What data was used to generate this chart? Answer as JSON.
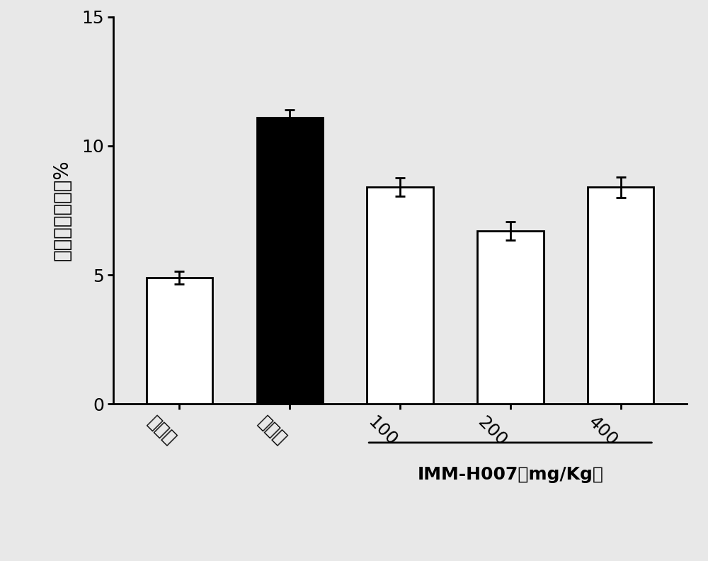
{
  "categories": [
    "对照组",
    "模型组",
    "100",
    "200",
    "400"
  ],
  "values": [
    4.9,
    11.1,
    8.4,
    6.7,
    8.4
  ],
  "errors": [
    0.25,
    0.3,
    0.35,
    0.35,
    0.4
  ],
  "bar_colors": [
    "white",
    "black",
    "white",
    "white",
    "white"
  ],
  "bar_edgecolors": [
    "black",
    "black",
    "black",
    "black",
    "black"
  ],
  "ylabel": "循环血单核细胞%",
  "ylim": [
    0,
    15
  ],
  "yticks": [
    0,
    5,
    10,
    15
  ],
  "bracket_label": "IMM-H007（mg/Kg）",
  "bracket_indices": [
    2,
    3,
    4
  ],
  "bar_width": 0.6,
  "linewidth": 2.0,
  "capsize": 5,
  "background_color": "#e8e8e8",
  "figure_bg": "#e8e8e8",
  "tick_label_fontsize": 18,
  "ylabel_fontsize": 20,
  "bracket_fontsize": 18
}
